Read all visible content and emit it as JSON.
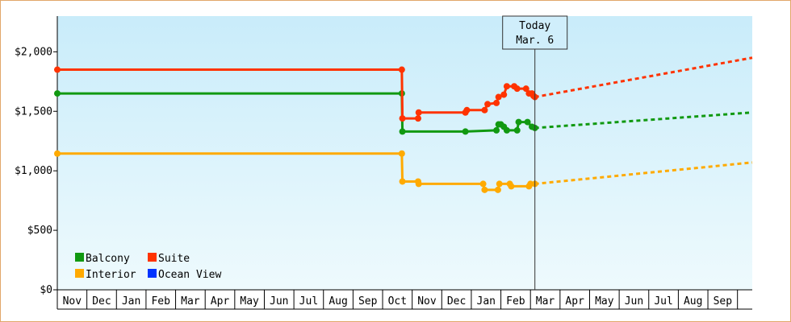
{
  "chart_data": {
    "type": "line",
    "y_label_prefix": "$",
    "ylim": [
      0,
      2300
    ],
    "yticks": [
      {
        "value": 0,
        "label": "$0"
      },
      {
        "value": 500,
        "label": "$500"
      },
      {
        "value": 1000,
        "label": "$1,000"
      },
      {
        "value": 1500,
        "label": "$1,500"
      },
      {
        "value": 2000,
        "label": "$2,000"
      }
    ],
    "month_labels": [
      "Nov",
      "Dec",
      "Jan",
      "Feb",
      "Mar",
      "Apr",
      "May",
      "Jun",
      "Jul",
      "Aug",
      "Sep",
      "Oct",
      "Nov",
      "Dec",
      "Jan",
      "Feb",
      "Mar",
      "Apr",
      "May",
      "Jun",
      "Jul",
      "Aug",
      "Sep"
    ],
    "xlim": [
      0,
      23.5
    ],
    "today": {
      "line1": "Today",
      "line2": "Mar. 6",
      "x": 16.15
    },
    "series": [
      {
        "name": "Balcony",
        "color": "#119911",
        "points": [
          [
            0,
            1650
          ],
          [
            11.65,
            1650
          ],
          [
            11.67,
            1330
          ],
          [
            13.8,
            1330
          ],
          [
            14.85,
            1340
          ],
          [
            14.92,
            1390
          ],
          [
            15.0,
            1390
          ],
          [
            15.1,
            1370
          ],
          [
            15.2,
            1340
          ],
          [
            15.55,
            1340
          ],
          [
            15.6,
            1410
          ],
          [
            15.9,
            1410
          ],
          [
            16.05,
            1370
          ],
          [
            16.15,
            1360
          ]
        ],
        "forecast": [
          [
            16.15,
            1360
          ],
          [
            23.5,
            1490
          ]
        ]
      },
      {
        "name": "Suite",
        "color": "#ff3300",
        "points": [
          [
            0,
            1850
          ],
          [
            11.65,
            1850
          ],
          [
            11.67,
            1440
          ],
          [
            12.2,
            1440
          ],
          [
            12.22,
            1490
          ],
          [
            13.8,
            1490
          ],
          [
            13.85,
            1510
          ],
          [
            14.45,
            1510
          ],
          [
            14.55,
            1560
          ],
          [
            14.85,
            1570
          ],
          [
            14.92,
            1620
          ],
          [
            15.1,
            1640
          ],
          [
            15.2,
            1710
          ],
          [
            15.45,
            1710
          ],
          [
            15.55,
            1690
          ],
          [
            15.85,
            1690
          ],
          [
            15.95,
            1650
          ],
          [
            16.05,
            1650
          ],
          [
            16.1,
            1630
          ],
          [
            16.15,
            1620
          ]
        ],
        "forecast": [
          [
            16.15,
            1620
          ],
          [
            23.5,
            1950
          ]
        ]
      },
      {
        "name": "Interior",
        "color": "#ffaa00",
        "points": [
          [
            0,
            1145
          ],
          [
            11.65,
            1145
          ],
          [
            11.67,
            910
          ],
          [
            12.2,
            910
          ],
          [
            12.22,
            890
          ],
          [
            14.4,
            890
          ],
          [
            14.45,
            840
          ],
          [
            14.9,
            840
          ],
          [
            14.95,
            890
          ],
          [
            15.3,
            890
          ],
          [
            15.35,
            870
          ],
          [
            15.95,
            870
          ],
          [
            16.0,
            890
          ],
          [
            16.15,
            890
          ]
        ],
        "forecast": [
          [
            16.15,
            890
          ],
          [
            23.5,
            1070
          ]
        ]
      },
      {
        "name": "Ocean View",
        "color": "#0033ff",
        "points": [],
        "forecast": []
      }
    ]
  }
}
